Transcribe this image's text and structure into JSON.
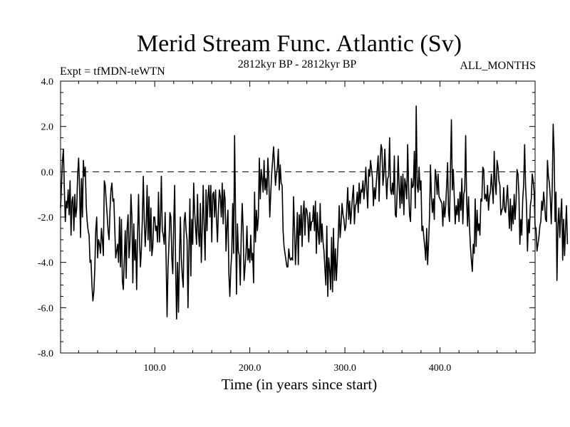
{
  "chart_data": {
    "type": "line",
    "title": "Merid Stream Func. Atlantic (Sv)",
    "subtitle_left": "Expt = tfMDN-teWTN",
    "subtitle_center": "2812kyr BP - 2812kyr BP",
    "subtitle_right": "ALL_MONTHS",
    "xlabel": "Time (in years since start)",
    "ylabel": "",
    "xlim": [
      1,
      500
    ],
    "ylim": [
      -8.0,
      4.0
    ],
    "x_ticks": [
      100,
      200,
      300,
      400
    ],
    "x_tick_labels": [
      "100.0",
      "200.0",
      "300.0",
      "400.0"
    ],
    "y_ticks": [
      4,
      2,
      0,
      -2,
      -4,
      -6,
      -8
    ],
    "y_tick_labels": [
      "4.0",
      "2.0",
      "0.0",
      "-2.0",
      "-4.0",
      "-6.0",
      "-8.0"
    ],
    "reference_line": 0.0,
    "grid": false,
    "series": [
      {
        "name": "Merid Stream Func. Atlantic",
        "x_start": 1,
        "x_step": 1,
        "values": [
          -1.6,
          -0.6,
          0.5,
          1.0,
          -0.8,
          -2.2,
          -1.3,
          -1.6,
          -0.8,
          -1.9,
          -0.4,
          -2.8,
          -1.3,
          -1.1,
          -2.6,
          -1.0,
          -2.0,
          -1.6,
          -0.1,
          0.6,
          -0.7,
          -2.9,
          -0.3,
          -2.0,
          0.5,
          -0.2,
          0.2,
          -1.5,
          -2.2,
          -2.6,
          -2.8,
          -4.0,
          -3.9,
          -5.0,
          -5.7,
          -5.3,
          -4.3,
          -2.6,
          -2.0,
          -3.8,
          -3.0,
          -3.2,
          -3.6,
          -2.5,
          -3.0,
          -3.7,
          -0.4,
          -0.6,
          -1.3,
          -1.9,
          -2.6,
          -3.0,
          -1.7,
          -0.8,
          -0.5,
          -1.3,
          -1.2,
          -2.5,
          -3.8,
          -3.5,
          -3.2,
          -4.0,
          -2.0,
          -4.2,
          -2.1,
          -4.8,
          -5.2,
          -3.9,
          -2.6,
          -4.7,
          -2.5,
          -1.9,
          -3.8,
          -3.1,
          -1.0,
          -2.0,
          -4.9,
          -2.3,
          -3.9,
          -3.0,
          -5.2,
          -2.8,
          -1.0,
          -3.0,
          -4.2,
          -3.4,
          -2.1,
          -0.2,
          -2.1,
          -3.3,
          -2.4,
          -0.6,
          -3.0,
          -1.1,
          -3.5,
          -1.6,
          -3.7,
          -3.3,
          -2.0,
          -2.0,
          -2.6,
          -2.4,
          -3.1,
          -0.9,
          -3.1,
          -2.2,
          -0.2,
          -2.6,
          -2.8,
          -3.2,
          -1.8,
          -3.9,
          -6.4,
          -4.2,
          -3.2,
          -1.8,
          -2.0,
          -3.8,
          -4.5,
          -2.3,
          -0.6,
          -4.2,
          -6.5,
          -4.0,
          -6.2,
          -3.8,
          -2.0,
          -3.8,
          -4.6,
          -5.1,
          -2.2,
          -1.8,
          -2.6,
          -3.0,
          -6.0,
          -3.5,
          -1.2,
          -4.6,
          -2.1,
          -3.2,
          -0.5,
          -1.8,
          -2.5,
          -3.2,
          -1.0,
          -2.7,
          -3.3,
          -1.4,
          -4.0,
          -2.5,
          -0.6,
          -2.4,
          -3.9,
          -0.8,
          -2.6,
          -1.1,
          -0.6,
          -2.0,
          -0.6,
          -3.1,
          -1.0,
          -0.9,
          -2.0,
          -0.8,
          -2.1,
          -3.1,
          -1.7,
          -0.8,
          -1.1,
          -2.0,
          -0.5,
          -2.3,
          -0.8,
          -1.2,
          -3.5,
          -2.4,
          -1.7,
          -4.5,
          -5.5,
          -4.3,
          -3.6,
          -1.4,
          -3.6,
          1.6,
          -1.9,
          -5.4,
          -2.3,
          -3.5,
          -3.7,
          -5.0,
          -2.8,
          -1.4,
          -2.5,
          -4.8,
          -4.2,
          -3.6,
          -2.4,
          -3.9,
          -3.4,
          -4.0,
          -2.8,
          -3.9,
          -3.6,
          -4.9,
          -0.9,
          -3.1,
          -1.7,
          -2.6,
          -2.0,
          0.6,
          -1.2,
          0.1,
          -0.3,
          -0.9,
          0.5,
          -0.8,
          -0.3,
          -1.0,
          0.6,
          -0.3,
          -2.0,
          -1.0,
          -0.1,
          0.5,
          1.1,
          0.3,
          -0.6,
          -0.1,
          0.2,
          1.0,
          -0.8,
          0.3,
          -0.5,
          -0.6,
          -2.6,
          -3.3,
          -3.6,
          -3.9,
          -4.2,
          -4.2,
          -3.4,
          -3.8,
          -3.9,
          -3.8,
          -3.9,
          -1.1,
          -2.5,
          -4.1,
          -3.0,
          -1.8,
          -4.1,
          -1.9,
          -2.8,
          -1.5,
          -3.3,
          -1.9,
          -1.3,
          -2.8,
          -1.6,
          -1.7,
          -2.1,
          -3.1,
          -1.8,
          -2.6,
          -2.2,
          -2.2,
          -1.5,
          -2.6,
          -1.3,
          -3.6,
          -1.8,
          -2.7,
          -3.2,
          -1.4,
          -3.1,
          -2.3,
          -3.1,
          -3.5,
          -4.3,
          -5.0,
          -2.4,
          -5.5,
          -3.8,
          -4.3,
          -5.2,
          -2.9,
          -5.3,
          -2.5,
          -4.8,
          -3.4,
          -4.8,
          -3.9,
          -2.9,
          -1.5,
          -2.9,
          -2.3,
          -1.4,
          -1.9,
          -2.1,
          -2.6,
          -2.4,
          -1.6,
          -0.7,
          -2.1,
          -1.3,
          -2.3,
          -1.7,
          -1.1,
          -0.6,
          -2.3,
          -1.5,
          -1.4,
          -0.9,
          -1.8,
          -0.5,
          -1.4,
          -0.8,
          -0.9,
          -0.4,
          -1.2,
          -0.7,
          0.2,
          -0.8,
          -1.6,
          0.1,
          -0.2,
          0.5,
          0.1,
          -0.3,
          -1.5,
          -0.7,
          -1.2,
          -0.5,
          0.1,
          0.7,
          -1.3,
          0.3,
          1.2,
          1.0,
          -0.6,
          -0.1,
          1.0,
          -0.1,
          -1.2,
          -0.3,
          -0.2,
          1.5,
          -0.8,
          -1.0,
          -0.5,
          -1.0,
          0.7,
          -1.9,
          -2.0,
          -0.8,
          0.7,
          -0.6,
          -1.6,
          -0.2,
          -1.4,
          -0.1,
          -1.9,
          -0.3,
          -0.6,
          -1.2,
          1.2,
          -0.7,
          -1.9,
          -2.2,
          -0.3,
          -0.7,
          -0.6,
          0.9,
          -1.6,
          2.9,
          -0.6,
          -0.9,
          0.2,
          -0.8,
          -0.4,
          -2.6,
          -2.4,
          -2.9,
          -3.3,
          -3.9,
          -2.5,
          -4.1,
          -3.1,
          -2.0,
          0.3,
          -1.1,
          -1.8,
          -1.2,
          -2.1,
          0.1,
          -0.2,
          -1.0,
          -0.1,
          -1.1,
          -1.2,
          -1.3,
          -1.4,
          -2.4,
          -1.3,
          -2.0,
          -1.5,
          -0.6,
          0.4,
          -1.8,
          -2.2,
          0.1,
          2.3,
          -0.8,
          0.1,
          -1.1,
          -2.3,
          -1.5,
          -1.9,
          -1.2,
          -2.2,
          -0.9,
          -1.7,
          -0.3,
          -2.3,
          -1.0,
          -0.8,
          1.6,
          -1.2,
          -2.4,
          -1.1,
          -2.4,
          -3.3,
          -3.9,
          -4.4,
          -3.2,
          -3.6,
          -1.2,
          -3.3,
          -1.7,
          -2.6,
          -2.3,
          -2.8,
          -1.2,
          -1.3,
          0.2,
          0.1,
          -1.2,
          -1.0,
          -1.3,
          -0.6,
          -1.7,
          -1.1,
          -0.9,
          -0.1,
          -0.7,
          -1.4,
          0.9,
          -0.5,
          -1.0,
          0.5,
          0.2,
          -0.4,
          -0.6,
          -1.9,
          -1.7,
          -1.6,
          -0.7,
          -1.7,
          -1.8,
          -1.2,
          -0.6,
          -1.6,
          -2.5,
          -1.2,
          -2.6,
          -1.5,
          -2.3,
          -1.0,
          -2.1,
          -1.3,
          0.1,
          -0.1,
          -1.0,
          -3.2,
          -2.1,
          -2.8,
          -1.2,
          -0.6,
          1.2,
          -0.6,
          -1.5,
          -3.5,
          -2.1,
          -2.7,
          -1.5,
          -1.2,
          -0.1,
          -0.4,
          -0.9,
          -2.4,
          -2.5,
          -3.5,
          -3.2,
          -2.9,
          -2.4,
          -2.2,
          -1.3,
          -1.7,
          -0.9,
          -1.4,
          -2.1,
          -2.2,
          0.5,
          -0.2,
          -0.5,
          -1.1,
          -2.3,
          -0.8,
          2.1,
          0.9,
          -2.2,
          -0.9,
          -4.8,
          -2.4,
          -1.6,
          -2.9,
          -1.9,
          -1.2,
          -3.9,
          -2.1,
          -3.7,
          -2.5,
          -1.5,
          -3.2
        ]
      }
    ]
  }
}
